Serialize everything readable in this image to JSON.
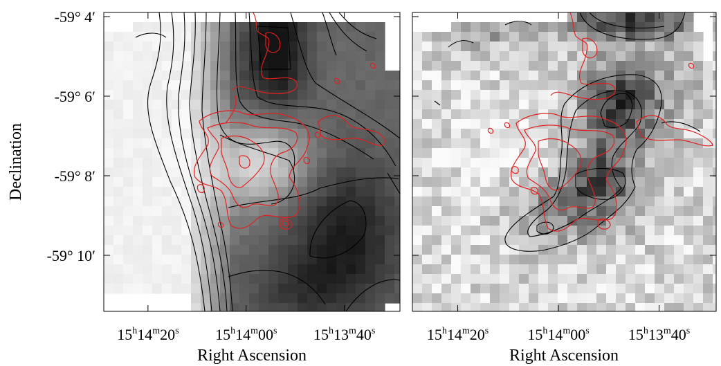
{
  "chart_data": [
    {
      "type": "heatmap",
      "panel": "left",
      "title": "",
      "xlabel": "Right Ascension",
      "ylabel": "Declination",
      "x_ticks": [
        {
          "h": "15",
          "m": "14",
          "s": "20",
          "ra_deg": 228.5833
        },
        {
          "h": "15",
          "m": "14",
          "s": "00",
          "ra_deg": 228.5
        },
        {
          "h": "15",
          "m": "13",
          "s": "40",
          "ra_deg": 228.4167
        }
      ],
      "y_ticks": [
        {
          "label": "-59° 4′",
          "dec_arcmin": -3544
        },
        {
          "label": "-59° 6′",
          "dec_arcmin": -3546
        },
        {
          "label": "-59° 8′",
          "dec_arcmin": -3548
        },
        {
          "label": "-59° 10′",
          "dec_arcmin": -3550
        }
      ],
      "grid": false,
      "colormap": "grayscale, dark = high",
      "contour_colors": [
        "#000000",
        "#e02020"
      ]
    },
    {
      "type": "heatmap",
      "panel": "right",
      "title": "",
      "xlabel": "Right Ascension",
      "ylabel": "",
      "x_ticks": [
        {
          "h": "15",
          "m": "14",
          "s": "20",
          "ra_deg": 228.5833
        },
        {
          "h": "15",
          "m": "14",
          "s": "00",
          "ra_deg": 228.5
        },
        {
          "h": "15",
          "m": "13",
          "s": "40",
          "ra_deg": 228.4167
        }
      ],
      "y_ticks": [],
      "grid": false,
      "colormap": "grayscale, dark = high",
      "contour_colors": [
        "#000000",
        "#e02020"
      ]
    }
  ]
}
